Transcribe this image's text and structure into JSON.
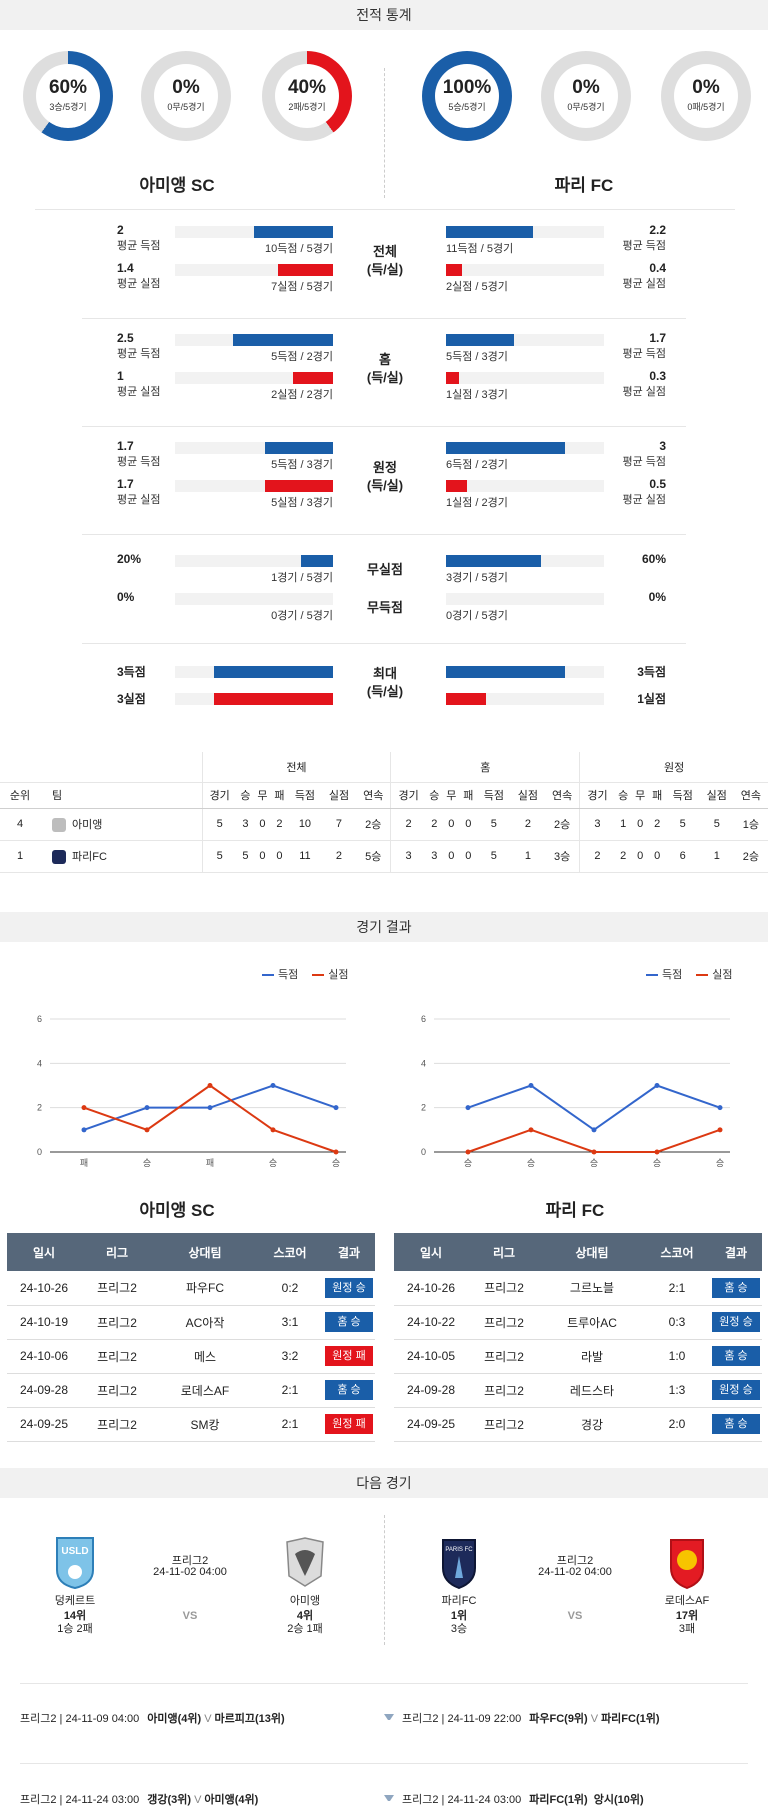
{
  "sections": {
    "stats": "전적 통계",
    "results": "경기 결과",
    "next": "다음 경기"
  },
  "teams": {
    "home": "아미앵 SC",
    "away": "파리 FC"
  },
  "donuts": {
    "home": [
      {
        "pct": "60%",
        "sub": "3승/5경기",
        "value": 0.6,
        "color": "#1a5ea8"
      },
      {
        "pct": "0%",
        "sub": "0무/5경기",
        "value": 0,
        "color": "#888"
      },
      {
        "pct": "40%",
        "sub": "2패/5경기",
        "value": 0.4,
        "color": "#e3141c"
      }
    ],
    "away": [
      {
        "pct": "100%",
        "sub": "5승/5경기",
        "value": 1.0,
        "color": "#1a5ea8"
      },
      {
        "pct": "0%",
        "sub": "0무/5경기",
        "value": 0,
        "color": "#888"
      },
      {
        "pct": "0%",
        "sub": "0패/5경기",
        "value": 0,
        "color": "#e3141c"
      }
    ]
  },
  "stat_groups": [
    {
      "cat": "전체",
      "cat2": "(득/실)",
      "rows": [
        {
          "hn": "2",
          "hl": "평균 득점",
          "hc": "10득점 / 5경기",
          "hv": 0.5,
          "an": "2.2",
          "al": "평균 득점",
          "ac": "11득점 / 5경기",
          "av": 0.55,
          "color": "blue"
        },
        {
          "hn": "1.4",
          "hl": "평균 실점",
          "hc": "7실점 / 5경기",
          "hv": 0.35,
          "an": "0.4",
          "al": "평균 실점",
          "ac": "2실점 / 5경기",
          "av": 0.1,
          "color": "red"
        }
      ]
    },
    {
      "cat": "홈",
      "cat2": "(득/실)",
      "rows": [
        {
          "hn": "2.5",
          "hl": "평균 득점",
          "hc": "5득점 / 2경기",
          "hv": 0.63,
          "an": "1.7",
          "al": "평균 득점",
          "ac": "5득점 / 3경기",
          "av": 0.43,
          "color": "blue"
        },
        {
          "hn": "1",
          "hl": "평균 실점",
          "hc": "2실점 / 2경기",
          "hv": 0.25,
          "an": "0.3",
          "al": "평균 실점",
          "ac": "1실점 / 3경기",
          "av": 0.08,
          "color": "red"
        }
      ]
    },
    {
      "cat": "원정",
      "cat2": "(득/실)",
      "rows": [
        {
          "hn": "1.7",
          "hl": "평균 득점",
          "hc": "5득점 / 3경기",
          "hv": 0.43,
          "an": "3",
          "al": "평균 득점",
          "ac": "6득점 / 2경기",
          "av": 0.75,
          "color": "blue"
        },
        {
          "hn": "1.7",
          "hl": "평균 실점",
          "hc": "5실점 / 3경기",
          "hv": 0.43,
          "an": "0.5",
          "al": "평균 실점",
          "ac": "1실점 / 2경기",
          "av": 0.13,
          "color": "red"
        }
      ]
    }
  ],
  "clean": {
    "cat": "무실점",
    "hn": "20%",
    "hc": "1경기 / 5경기",
    "hv": 0.2,
    "an": "60%",
    "ac": "3경기 / 5경기",
    "av": 0.6
  },
  "noscore": {
    "cat": "무득점",
    "hn": "0%",
    "hc": "0경기 / 5경기",
    "hv": 0,
    "an": "0%",
    "ac": "0경기 / 5경기",
    "av": 0
  },
  "max": {
    "cat": "최대",
    "cat2": "(득/실)",
    "hs": "3득점",
    "hcd": "3실점",
    "hsv": 0.75,
    "hcv": 0.75,
    "as": "3득점",
    "acd": "1실점",
    "asv": 0.75,
    "acv": 0.25
  },
  "standings": {
    "groups": [
      "전체",
      "홈",
      "원정"
    ],
    "headers": [
      "순위",
      "팀",
      "경기",
      "승",
      "무",
      "패",
      "득점",
      "실점",
      "연속"
    ],
    "rows": [
      {
        "rank": "4",
        "team": "아미앵",
        "total": [
          "5",
          "3",
          "0",
          "2",
          "10",
          "7",
          "2승"
        ],
        "home": [
          "2",
          "2",
          "0",
          "0",
          "5",
          "2",
          "2승"
        ],
        "away": [
          "3",
          "1",
          "0",
          "2",
          "5",
          "5",
          "1승"
        ]
      },
      {
        "rank": "1",
        "team": "파리FC",
        "total": [
          "5",
          "5",
          "0",
          "0",
          "11",
          "2",
          "5승"
        ],
        "home": [
          "3",
          "3",
          "0",
          "0",
          "5",
          "1",
          "3승"
        ],
        "away": [
          "2",
          "2",
          "0",
          "0",
          "6",
          "1",
          "2승"
        ]
      }
    ]
  },
  "legend": {
    "scored": "득점",
    "conceded": "실점"
  },
  "chart_data": [
    {
      "type": "line",
      "title": "아미앵 SC",
      "x": [
        "패",
        "승",
        "패",
        "승",
        "승"
      ],
      "series": [
        {
          "name": "득점",
          "values": [
            1,
            2,
            2,
            3,
            2
          ],
          "color": "#3366cc"
        },
        {
          "name": "실점",
          "values": [
            2,
            1,
            3,
            1,
            0
          ],
          "color": "#dc3912"
        }
      ],
      "ylim": [
        0,
        6
      ],
      "yticks": [
        0,
        2,
        4,
        6
      ]
    },
    {
      "type": "line",
      "title": "파리 FC",
      "x": [
        "승",
        "승",
        "승",
        "승",
        "승"
      ],
      "series": [
        {
          "name": "득점",
          "values": [
            2,
            3,
            1,
            3,
            2
          ],
          "color": "#3366cc"
        },
        {
          "name": "실점",
          "values": [
            0,
            1,
            0,
            0,
            1
          ],
          "color": "#dc3912"
        }
      ],
      "ylim": [
        0,
        6
      ],
      "yticks": [
        0,
        2,
        4,
        6
      ]
    }
  ],
  "results": {
    "headers": [
      "일시",
      "리그",
      "상대팀",
      "스코어",
      "결과"
    ],
    "home": [
      {
        "date": "24-10-26",
        "league": "프리그2",
        "opp": "파우FC",
        "score": "0:2",
        "res": "원정 승",
        "color": "blue"
      },
      {
        "date": "24-10-19",
        "league": "프리그2",
        "opp": "AC아작",
        "score": "3:1",
        "res": "홈 승",
        "color": "blue"
      },
      {
        "date": "24-10-06",
        "league": "프리그2",
        "opp": "메스",
        "score": "3:2",
        "res": "원정 패",
        "color": "red"
      },
      {
        "date": "24-09-28",
        "league": "프리그2",
        "opp": "로데스AF",
        "score": "2:1",
        "res": "홈 승",
        "color": "blue"
      },
      {
        "date": "24-09-25",
        "league": "프리그2",
        "opp": "SM캉",
        "score": "2:1",
        "res": "원정 패",
        "color": "red"
      }
    ],
    "away": [
      {
        "date": "24-10-26",
        "league": "프리그2",
        "opp": "그르노블",
        "score": "2:1",
        "res": "홈 승",
        "color": "blue"
      },
      {
        "date": "24-10-22",
        "league": "프리그2",
        "opp": "트루아AC",
        "score": "0:3",
        "res": "원정 승",
        "color": "blue"
      },
      {
        "date": "24-10-05",
        "league": "프리그2",
        "opp": "라발",
        "score": "1:0",
        "res": "홈 승",
        "color": "blue"
      },
      {
        "date": "24-09-28",
        "league": "프리그2",
        "opp": "레드스타",
        "score": "1:3",
        "res": "원정 승",
        "color": "blue"
      },
      {
        "date": "24-09-25",
        "league": "프리그2",
        "opp": "경강",
        "score": "2:0",
        "res": "홈 승",
        "color": "blue"
      }
    ]
  },
  "next": {
    "left": {
      "league": "프리그2",
      "datetime": "24-11-02 04:00",
      "vs": "VS",
      "t1": {
        "name": "덩케르트",
        "rank": "14위",
        "rec": "1승 2패",
        "logo": "USLD"
      },
      "t2": {
        "name": "아미앵",
        "rank": "4위",
        "rec": "2승 1패"
      }
    },
    "right": {
      "league": "프리그2",
      "datetime": "24-11-02 04:00",
      "vs": "VS",
      "t1": {
        "name": "파리FC",
        "rank": "1위",
        "rec": "3승",
        "logo": "PARIS FC"
      },
      "t2": {
        "name": "로데스AF",
        "rank": "17위",
        "rec": "3패"
      }
    }
  },
  "upcoming": {
    "left": [
      {
        "info": "프리그2 | 24-11-09 04:00",
        "teams": "아미앵(4위)",
        "mid": "V",
        "opp": "마르피끄(13위)"
      },
      {
        "info": "프리그2 | 24-11-24 03:00",
        "teams": "갱강(3위)",
        "mid": "V",
        "opp": "아미앵(4위)"
      }
    ],
    "right": [
      {
        "info": "프리그2 | 24-11-09 22:00",
        "teams": "파우FC(9위)",
        "mid": "V",
        "opp": "파리FC(1위)"
      },
      {
        "info": "프리그2 | 24-11-24 03:00",
        "teams": "파리FC(1위)",
        "mid": "",
        "opp": "앙시(10위)"
      }
    ]
  }
}
